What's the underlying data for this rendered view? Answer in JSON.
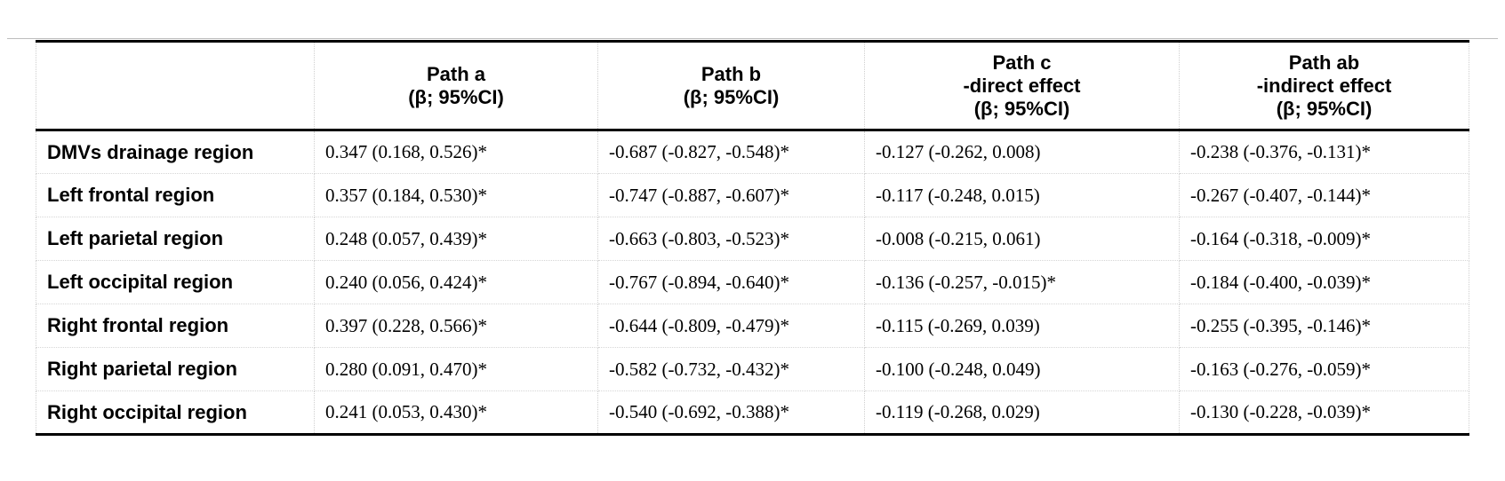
{
  "table": {
    "columns": [
      {
        "id": "region",
        "lines": [
          "",
          "",
          ""
        ]
      },
      {
        "id": "path_a",
        "lines": [
          "Path a",
          "(β; 95%CI)",
          ""
        ]
      },
      {
        "id": "path_b",
        "lines": [
          "Path b",
          "(β; 95%CI)",
          ""
        ]
      },
      {
        "id": "path_c",
        "lines": [
          "Path c",
          "-direct effect",
          "(β; 95%CI)"
        ]
      },
      {
        "id": "path_ab",
        "lines": [
          "Path ab",
          "-indirect effect",
          "(β; 95%CI)"
        ]
      }
    ],
    "rows": [
      {
        "region": "DMVs drainage region",
        "path_a": "0.347 (0.168, 0.526)*",
        "path_b": "-0.687 (-0.827, -0.548)*",
        "path_c": "-0.127 (-0.262, 0.008)",
        "path_ab": "-0.238 (-0.376, -0.131)*"
      },
      {
        "region": "Left frontal region",
        "path_a": "0.357 (0.184, 0.530)*",
        "path_b": "-0.747 (-0.887, -0.607)*",
        "path_c": "-0.117 (-0.248, 0.015)",
        "path_ab": "-0.267 (-0.407, -0.144)*"
      },
      {
        "region": "Left parietal region",
        "path_a": "0.248 (0.057, 0.439)*",
        "path_b": "-0.663 (-0.803, -0.523)*",
        "path_c": "-0.008 (-0.215, 0.061)",
        "path_ab": "-0.164 (-0.318, -0.009)*"
      },
      {
        "region": "Left occipital region",
        "path_a": "0.240 (0.056, 0.424)*",
        "path_b": "-0.767 (-0.894, -0.640)*",
        "path_c": "-0.136 (-0.257, -0.015)*",
        "path_ab": "-0.184 (-0.400, -0.039)*"
      },
      {
        "region": "Right frontal region",
        "path_a": "0.397 (0.228, 0.566)*",
        "path_b": "-0.644 (-0.809, -0.479)*",
        "path_c": "-0.115 (-0.269, 0.039)",
        "path_ab": "-0.255 (-0.395, -0.146)*"
      },
      {
        "region": "Right parietal region",
        "path_a": "0.280 (0.091, 0.470)*",
        "path_b": "-0.582 (-0.732, -0.432)*",
        "path_c": "-0.100 (-0.248, 0.049)",
        "path_ab": "-0.163 (-0.276, -0.059)*"
      },
      {
        "region": "Right occipital region",
        "path_a": "0.241 (0.053, 0.430)*",
        "path_b": "-0.540 (-0.692, -0.388)*",
        "path_c": "-0.119 (-0.268, 0.029)",
        "path_ab": "-0.130 (-0.228, -0.039)*"
      }
    ],
    "colors": {
      "rule": "#000000",
      "grid_dotted": "#cfcfcf",
      "background": "#ffffff",
      "text": "#000000"
    }
  }
}
